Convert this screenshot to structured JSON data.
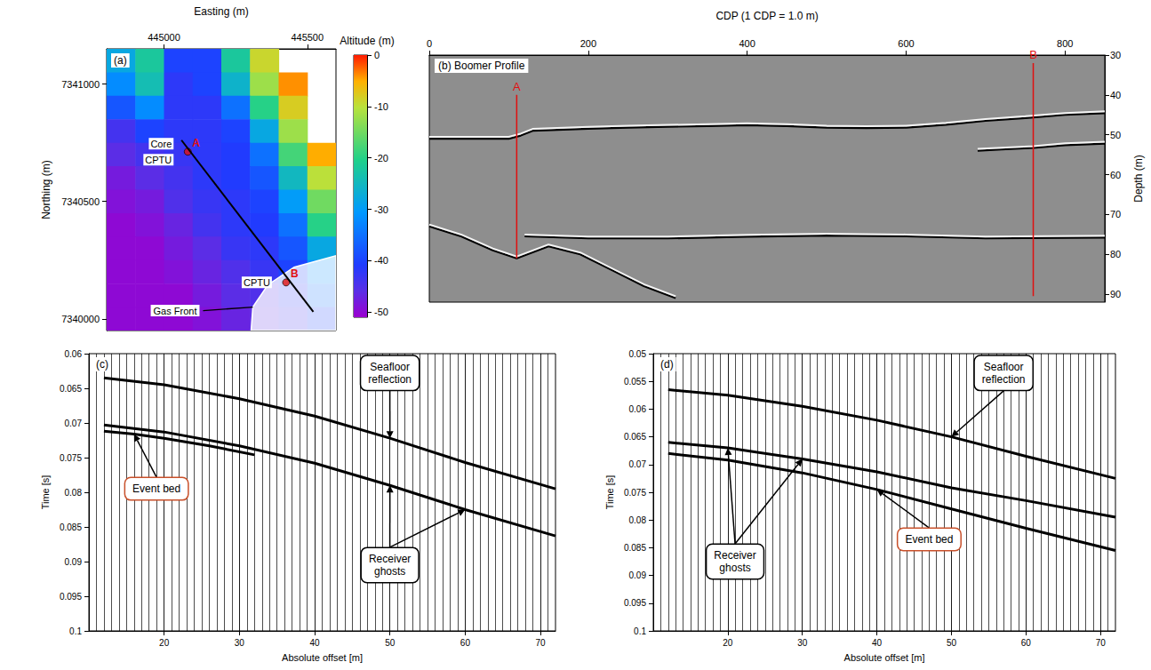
{
  "chart_data": [
    {
      "type": "heatmap",
      "title": "(a)",
      "x_label": "Easting (m)",
      "y_label": "Northing (m)",
      "xlim": [
        444800,
        445600
      ],
      "xticks": [
        445000,
        445500
      ],
      "ylim": [
        7339950,
        7341150
      ],
      "yticks": [
        7340000,
        7340500,
        7341000
      ],
      "cells": {
        "easting": [
          444850,
          444950,
          445050,
          445150,
          445250,
          445350,
          445450,
          445550
        ],
        "northing": [
          7341100,
          7341000,
          7340900,
          7340800,
          7340700,
          7340600,
          7340500,
          7340400,
          7340300,
          7340200,
          7340100,
          7340000
        ],
        "values": [
          [
            -28,
            -22,
            -40,
            -40,
            -22,
            -9,
            null,
            null
          ],
          [
            -32,
            -24,
            -42,
            -40,
            -26,
            -12,
            -4,
            null
          ],
          [
            -38,
            -32,
            -42,
            -42,
            -35,
            -20,
            -8,
            null
          ],
          [
            -44,
            -40,
            -42,
            -42,
            -40,
            -28,
            -12,
            null
          ],
          [
            -46,
            -44,
            -43,
            -42,
            -41,
            -35,
            -18,
            -5
          ],
          [
            -48,
            -46,
            -44,
            -42,
            -41,
            -38,
            -25,
            -10
          ],
          [
            -49,
            -48,
            -45,
            -43,
            -42,
            -40,
            -30,
            -15
          ],
          [
            -50,
            -49,
            -47,
            -44,
            -42,
            -41,
            -35,
            -20
          ],
          [
            -50,
            -50,
            -48,
            -46,
            -43,
            -42,
            -38,
            -28
          ],
          [
            -50,
            -50,
            -49,
            -47,
            -45,
            -43,
            -40,
            -32
          ],
          [
            -50,
            -50,
            -50,
            -48,
            -46,
            -45,
            -42,
            -35
          ],
          [
            -50,
            -50,
            -50,
            -49,
            -47,
            -46,
            -44,
            -40
          ]
        ]
      },
      "colorbar": {
        "label": "Altitude (m)",
        "lim": [
          -51,
          0
        ],
        "ticks": [
          0,
          -10,
          -20,
          -30,
          -40,
          -50
        ]
      },
      "track": {
        "color": "#000000",
        "easting": [
          445061,
          445521
        ],
        "northing": [
          7340761,
          7340030
        ]
      },
      "points": [
        {
          "label": "A",
          "color": "#e01010",
          "easting": 445083,
          "northing": 7340712,
          "texts": [
            "Core",
            "CPTU"
          ]
        },
        {
          "label": "B",
          "color": "#e01010",
          "easting": 445426,
          "northing": 7340155,
          "texts": [
            "CPTU"
          ]
        }
      ],
      "gas_front": {
        "label": "Gas Front",
        "easting": [
          445304,
          445310,
          445362,
          445454,
          445600,
          445600
        ],
        "northing": [
          7339950,
          7340050,
          7340144,
          7340220,
          7340269,
          7339950
        ]
      }
    },
    {
      "type": "line",
      "title": "(b) Boomer Profile",
      "x_label": "CDP (1 CDP = 1.0 m)",
      "y_label": "Depth (m)",
      "xlim": [
        0,
        850
      ],
      "xticks": [
        0,
        200,
        400,
        600,
        800
      ],
      "ylim": [
        30,
        92
      ],
      "yticks": [
        30,
        40,
        50,
        60,
        70,
        80,
        90
      ],
      "reflectors": [
        {
          "color": "#000000",
          "cdp": [
            0,
            100,
            115,
            130,
            200,
            250,
            300,
            350,
            400,
            450,
            500,
            550,
            600,
            650,
            700,
            750,
            800,
            850
          ],
          "depth": [
            51,
            51,
            50.2,
            49,
            48.5,
            48.2,
            48,
            47.8,
            47.6,
            47.8,
            48.2,
            48.3,
            48.2,
            47.5,
            46.5,
            45.8,
            45,
            44.6
          ]
        },
        {
          "color": "#000000",
          "cdp": [
            690,
            720,
            760,
            800,
            850
          ],
          "depth": [
            54,
            53.7,
            53.3,
            52.6,
            52.2
          ]
        },
        {
          "color": "#000000",
          "cdp": [
            120,
            200,
            300,
            400,
            500,
            600,
            700,
            850
          ],
          "depth": [
            75.5,
            76,
            76,
            75.6,
            75.3,
            75.5,
            76,
            75.8
          ]
        },
        {
          "color": "#000000",
          "cdp": [
            0,
            40,
            80,
            110,
            150,
            190,
            230,
            270,
            310
          ],
          "depth": [
            73,
            75.5,
            79,
            81,
            78,
            80,
            84,
            88,
            91
          ]
        }
      ],
      "boreholes": [
        {
          "label": "A",
          "color": "#e01010",
          "cdp": 110,
          "depth": [
            40,
            81
          ]
        },
        {
          "label": "B",
          "color": "#e01010",
          "cdp": 760,
          "depth": [
            32,
            90.5
          ]
        }
      ]
    },
    {
      "type": "line",
      "title": "(c)",
      "x_label": "Absolute offset [m]",
      "y_label": "Time [s]",
      "grid": true,
      "xlim": [
        10,
        72
      ],
      "xticks": [
        20,
        30,
        40,
        50,
        60,
        70
      ],
      "ylim": [
        0.06,
        0.1
      ],
      "yticks": [
        0.06,
        0.065,
        0.07,
        0.075,
        0.08,
        0.085,
        0.09,
        0.095,
        0.1
      ],
      "series": [
        {
          "name": "Seafloor reflection",
          "color": "#000000",
          "x": [
            12,
            20,
            30,
            40,
            50,
            60,
            72
          ],
          "values": [
            0.0635,
            0.0645,
            0.0665,
            0.069,
            0.0722,
            0.0757,
            0.0795
          ]
        },
        {
          "name": "Receiver ghosts",
          "color": "#000000",
          "x": [
            12,
            20,
            30,
            40,
            50,
            60,
            72
          ],
          "values": [
            0.0703,
            0.0713,
            0.0733,
            0.0758,
            0.079,
            0.0825,
            0.0863
          ]
        },
        {
          "name": "Event bed",
          "color": "#000000",
          "x": [
            12,
            16,
            20,
            26,
            32
          ],
          "values": [
            0.0712,
            0.0716,
            0.0722,
            0.0733,
            0.0746
          ]
        }
      ]
    },
    {
      "type": "line",
      "title": "(d)",
      "x_label": "Absolute offset [m]",
      "y_label": "Time [s]",
      "grid": true,
      "xlim": [
        10,
        72
      ],
      "xticks": [
        20,
        30,
        40,
        50,
        60,
        70
      ],
      "ylim": [
        0.05,
        0.1
      ],
      "yticks": [
        0.05,
        0.055,
        0.06,
        0.065,
        0.07,
        0.075,
        0.08,
        0.085,
        0.09,
        0.095,
        0.1
      ],
      "series": [
        {
          "name": "Seafloor reflection",
          "color": "#000000",
          "x": [
            12,
            20,
            30,
            40,
            50,
            60,
            72
          ],
          "values": [
            0.0565,
            0.0575,
            0.0595,
            0.062,
            0.065,
            0.0685,
            0.0725
          ]
        },
        {
          "name": "Receiver ghosts",
          "color": "#000000",
          "x": [
            12,
            20,
            30,
            40,
            50,
            60,
            72
          ],
          "values": [
            0.066,
            0.067,
            0.069,
            0.0713,
            0.0742,
            0.0765,
            0.0795
          ]
        },
        {
          "name": "Event bed",
          "color": "#000000",
          "x": [
            12,
            20,
            30,
            40,
            50,
            60,
            72
          ],
          "values": [
            0.068,
            0.0692,
            0.0715,
            0.0745,
            0.078,
            0.0815,
            0.0855
          ]
        }
      ]
    }
  ]
}
